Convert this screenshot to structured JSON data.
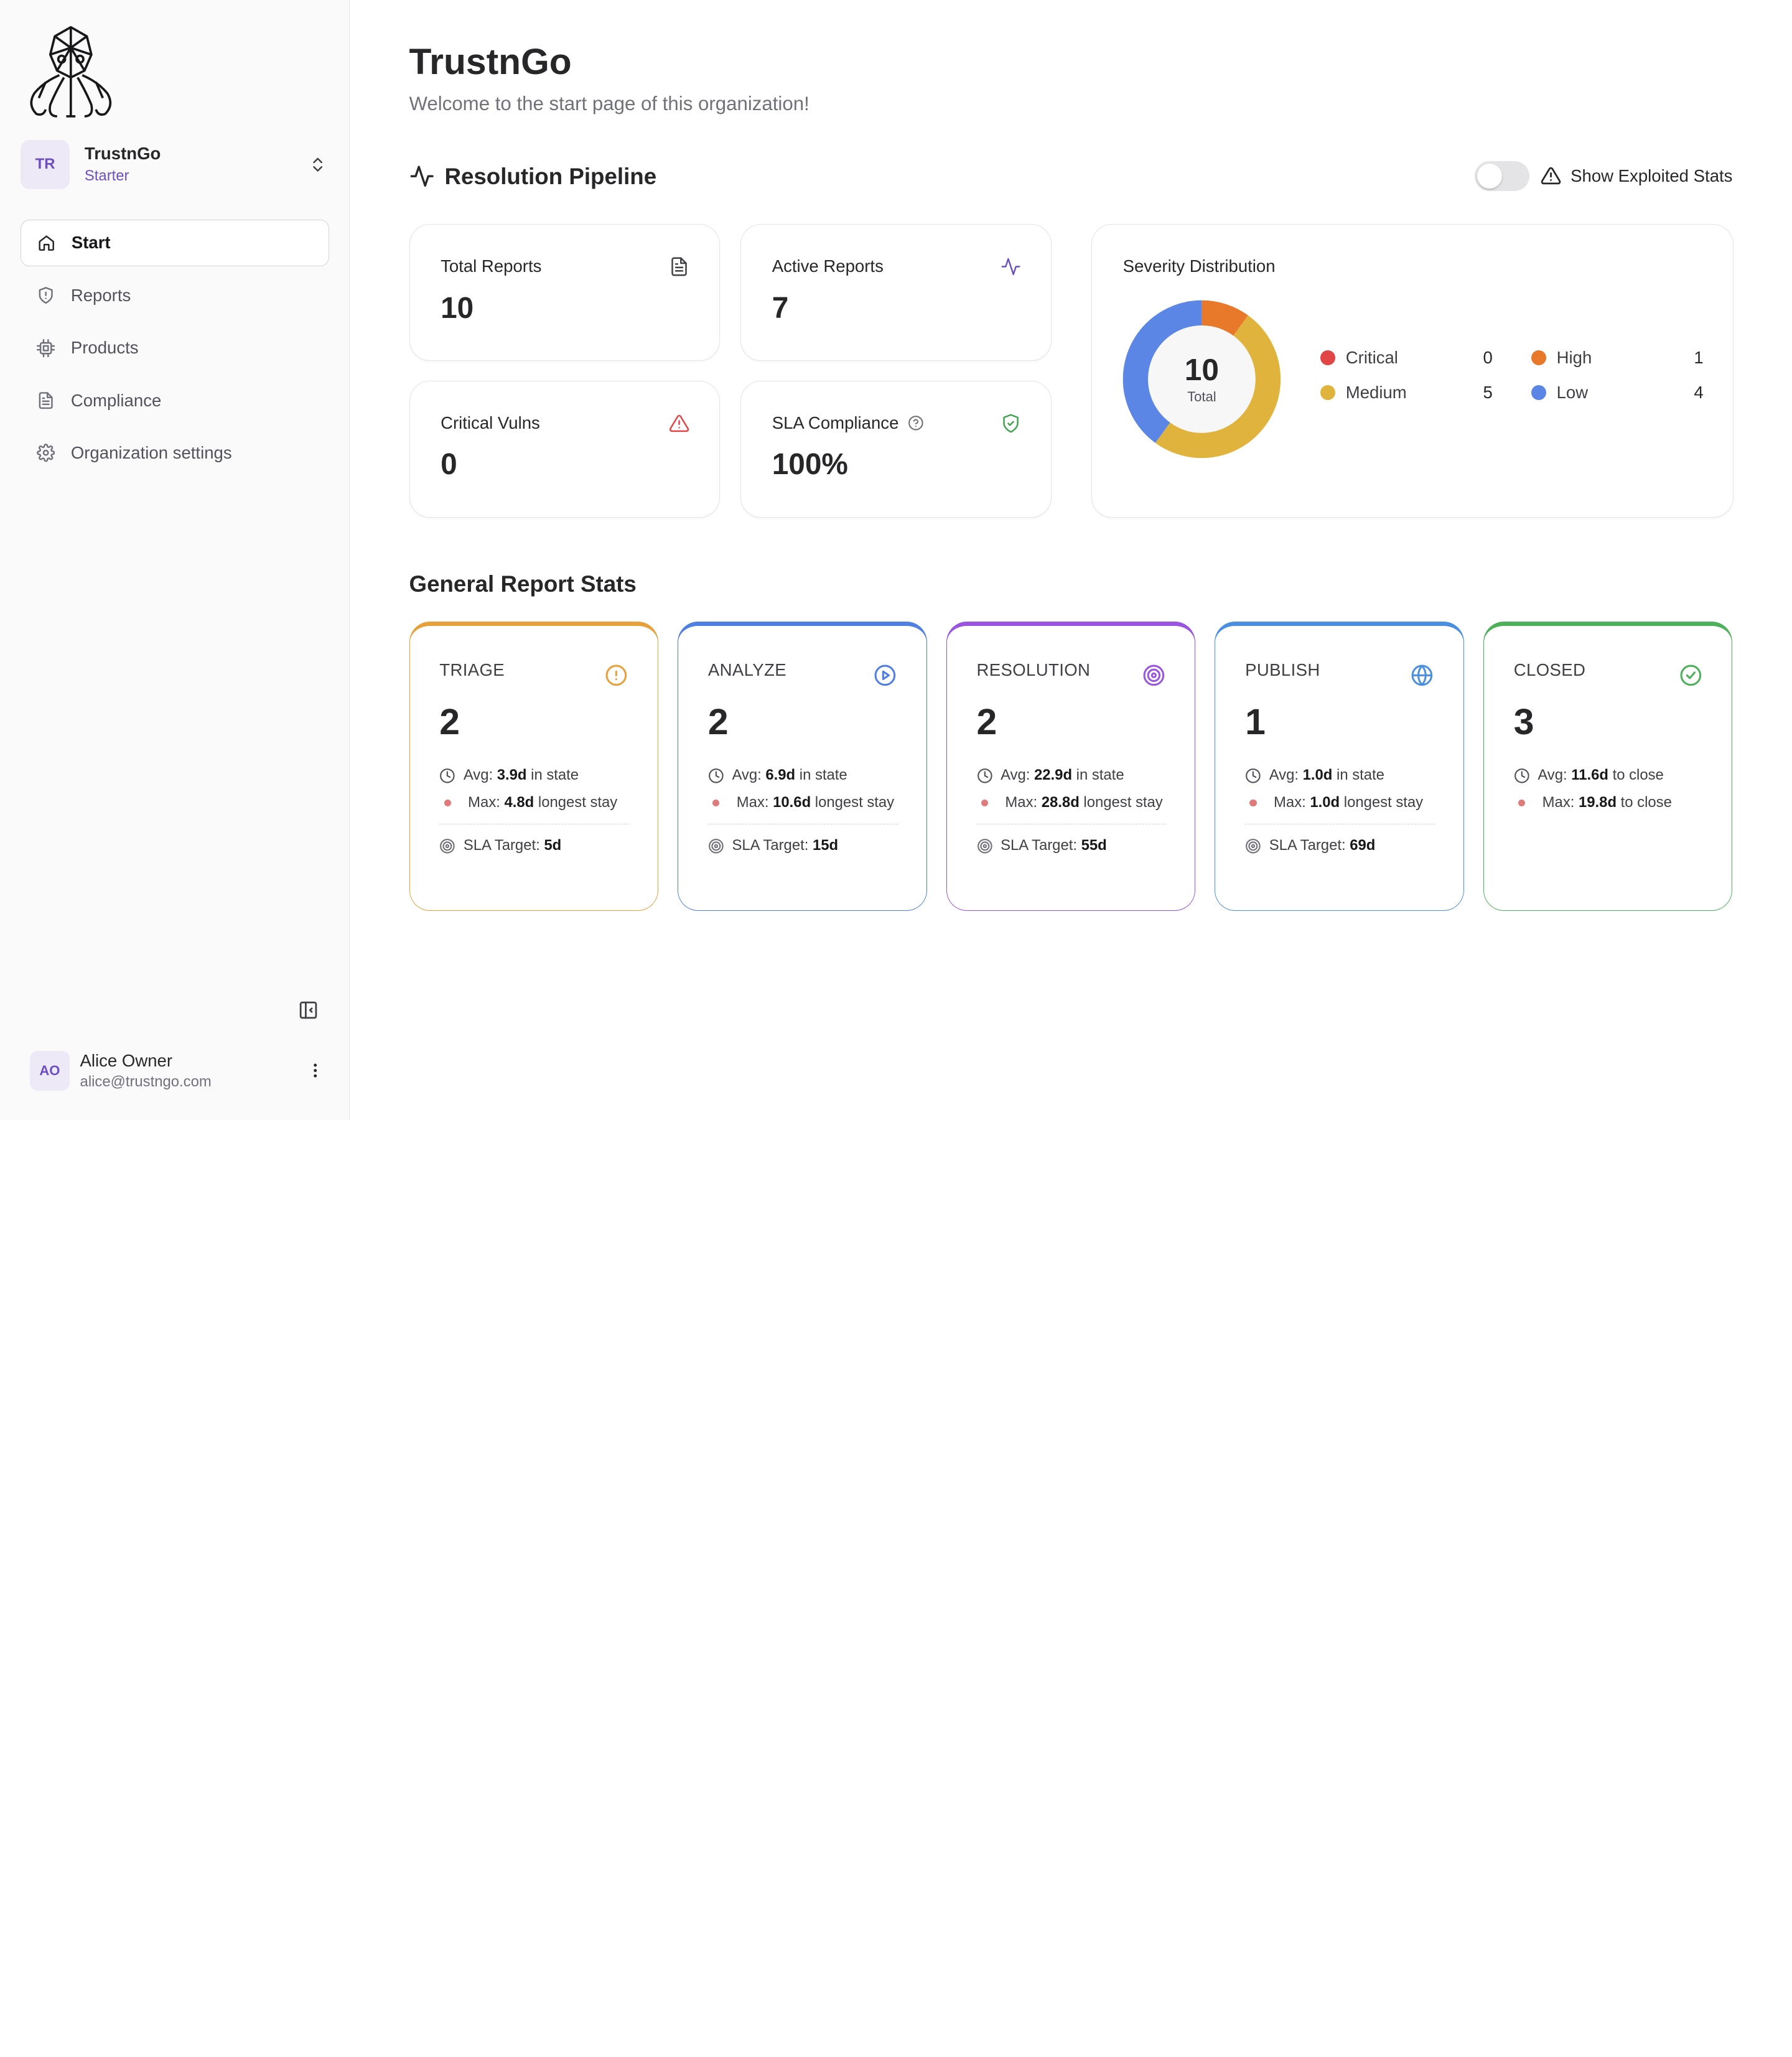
{
  "sidebar": {
    "org": {
      "initials": "TR",
      "name": "TrustnGo",
      "plan": "Starter"
    },
    "nav": [
      {
        "label": "Start",
        "icon": "home-icon"
      },
      {
        "label": "Reports",
        "icon": "shield-icon"
      },
      {
        "label": "Products",
        "icon": "cpu-icon"
      },
      {
        "label": "Compliance",
        "icon": "file-text-icon"
      },
      {
        "label": "Organization settings",
        "icon": "gear-icon"
      }
    ],
    "user": {
      "initials": "AO",
      "name": "Alice Owner",
      "email": "alice@trustngo.com"
    }
  },
  "header": {
    "title": "TrustnGo",
    "subtitle": "Welcome to the start page of this organization!"
  },
  "pipeline": {
    "title": "Resolution Pipeline",
    "toggle_label": "Show Exploited Stats",
    "toggle_on": false,
    "stats": {
      "total_reports": {
        "label": "Total Reports",
        "value": "10"
      },
      "active_reports": {
        "label": "Active Reports",
        "value": "7"
      },
      "critical_vulns": {
        "label": "Critical Vulns",
        "value": "0"
      },
      "sla_compliance": {
        "label": "SLA Compliance",
        "value": "100%"
      }
    }
  },
  "severity": {
    "title": "Severity Distribution",
    "total": "10",
    "total_label": "Total",
    "items": [
      {
        "name": "Critical",
        "count": 0,
        "color": "#e14545"
      },
      {
        "name": "High",
        "count": 1,
        "color": "#e8792b"
      },
      {
        "name": "Medium",
        "count": 5,
        "color": "#e0b43c"
      },
      {
        "name": "Low",
        "count": 4,
        "color": "#5b86e5"
      }
    ]
  },
  "general": {
    "title": "General Report Stats",
    "stages": [
      {
        "name": "TRIAGE",
        "count": "2",
        "color": "#e8a13a",
        "icon": "alert-circle-icon",
        "avg_prefix": "Avg: ",
        "avg": "3.9d",
        "avg_suffix": " in state",
        "max_prefix": "Max: ",
        "max": "4.8d",
        "max_suffix": " longest stay",
        "sla_prefix": "SLA Target: ",
        "sla": "5d"
      },
      {
        "name": "ANALYZE",
        "count": "2",
        "color": "#4f7fe0",
        "icon": "play-circle-icon",
        "avg_prefix": "Avg: ",
        "avg": "6.9d",
        "avg_suffix": " in state",
        "max_prefix": "Max: ",
        "max": "10.6d",
        "max_suffix": " longest stay",
        "sla_prefix": "SLA Target: ",
        "sla": "15d"
      },
      {
        "name": "RESOLUTION",
        "count": "2",
        "color": "#9a55e0",
        "icon": "target-icon",
        "avg_prefix": "Avg: ",
        "avg": "22.9d",
        "avg_suffix": " in state",
        "max_prefix": "Max: ",
        "max": "28.8d",
        "max_suffix": " longest stay",
        "sla_prefix": "SLA Target: ",
        "sla": "55d"
      },
      {
        "name": "PUBLISH",
        "count": "1",
        "color": "#4b8fe0",
        "icon": "globe-icon",
        "avg_prefix": "Avg: ",
        "avg": "1.0d",
        "avg_suffix": " in state",
        "max_prefix": "Max: ",
        "max": "1.0d",
        "max_suffix": " longest stay",
        "sla_prefix": "SLA Target: ",
        "sla": "69d"
      },
      {
        "name": "CLOSED",
        "count": "3",
        "color": "#4db05a",
        "icon": "check-circle-icon",
        "avg_prefix": "Avg: ",
        "avg": "11.6d",
        "avg_suffix": " to close",
        "max_prefix": "Max: ",
        "max": "19.8d",
        "max_suffix": " to close"
      }
    ]
  }
}
